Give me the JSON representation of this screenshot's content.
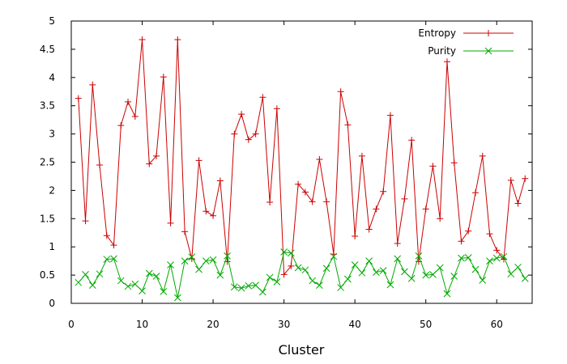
{
  "chart_data": {
    "type": "line",
    "title": "",
    "xlabel": "Cluster",
    "ylabel": "",
    "xlim": [
      0,
      65
    ],
    "ylim": [
      0,
      5
    ],
    "xticks": [
      0,
      10,
      20,
      30,
      40,
      50,
      60
    ],
    "xtick_labels": [
      "0",
      "10",
      "20",
      "30",
      "40",
      "50",
      "60"
    ],
    "yticks": [
      0,
      0.5,
      1,
      1.5,
      2,
      2.5,
      3,
      3.5,
      4,
      4.5,
      5
    ],
    "ytick_labels": [
      "0",
      "0.5",
      "1",
      "1.5",
      "2",
      "2.5",
      "3",
      "3.5",
      "4",
      "4.5",
      "5"
    ],
    "grid": false,
    "legend_position": "top-right",
    "x": [
      1,
      2,
      3,
      4,
      5,
      6,
      7,
      8,
      9,
      10,
      11,
      12,
      13,
      14,
      15,
      16,
      17,
      18,
      19,
      20,
      21,
      22,
      23,
      24,
      25,
      26,
      27,
      28,
      29,
      30,
      31,
      32,
      33,
      34,
      35,
      36,
      37,
      38,
      39,
      40,
      41,
      42,
      43,
      44,
      45,
      46,
      47,
      48,
      49,
      50,
      51,
      52,
      53,
      54,
      55,
      56,
      57,
      58,
      59,
      60,
      61,
      62,
      63,
      64
    ],
    "series": [
      {
        "name": "Entropy",
        "color": "#cc0000",
        "marker": "plus",
        "values": [
          3.63,
          1.46,
          3.87,
          2.45,
          1.2,
          1.03,
          3.15,
          3.57,
          3.31,
          4.67,
          2.47,
          2.61,
          4.01,
          1.42,
          4.67,
          1.27,
          0.79,
          2.53,
          1.63,
          1.55,
          2.17,
          0.74,
          3.0,
          3.35,
          2.9,
          3.0,
          3.65,
          1.79,
          3.45,
          0.51,
          0.66,
          2.11,
          1.97,
          1.8,
          2.55,
          1.8,
          0.87,
          3.75,
          3.16,
          1.19,
          2.61,
          1.31,
          1.67,
          1.98,
          3.33,
          1.06,
          1.85,
          2.89,
          0.74,
          1.67,
          2.43,
          1.5,
          4.28,
          2.49,
          1.1,
          1.28,
          1.96,
          2.61,
          1.23,
          0.94,
          0.78,
          2.18,
          1.77,
          2.21
        ]
      },
      {
        "name": "Purity",
        "color": "#00aa00",
        "marker": "cross",
        "values": [
          0.37,
          0.51,
          0.32,
          0.52,
          0.78,
          0.79,
          0.4,
          0.3,
          0.34,
          0.22,
          0.53,
          0.48,
          0.21,
          0.68,
          0.1,
          0.75,
          0.82,
          0.6,
          0.75,
          0.77,
          0.5,
          0.84,
          0.29,
          0.27,
          0.31,
          0.32,
          0.2,
          0.46,
          0.38,
          0.91,
          0.89,
          0.63,
          0.59,
          0.4,
          0.32,
          0.62,
          0.83,
          0.28,
          0.43,
          0.68,
          0.54,
          0.75,
          0.55,
          0.58,
          0.33,
          0.79,
          0.56,
          0.44,
          0.84,
          0.5,
          0.51,
          0.63,
          0.17,
          0.48,
          0.8,
          0.81,
          0.6,
          0.41,
          0.75,
          0.8,
          0.83,
          0.52,
          0.64,
          0.44
        ]
      }
    ]
  }
}
